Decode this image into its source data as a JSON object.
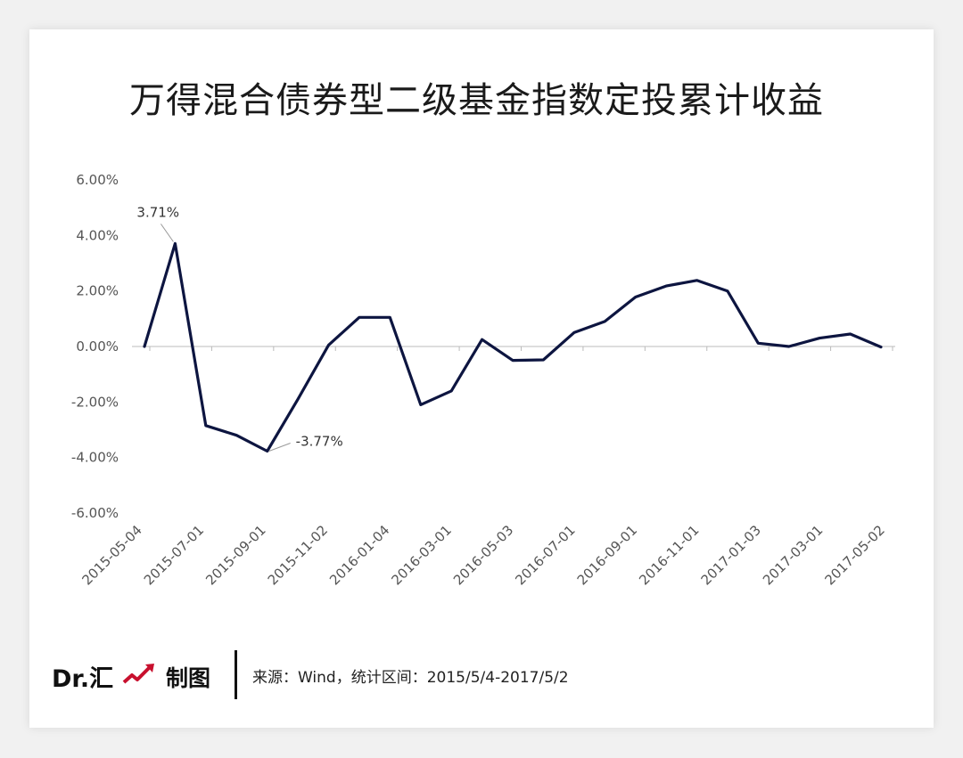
{
  "colors": {
    "line": "#0d1540",
    "accent": "#c8102e",
    "axis": "#bbbbbb"
  },
  "chart_data": {
    "type": "line",
    "title": "万得混合债券型二级基金指数定投累计收益",
    "xlabel": "",
    "ylabel": "",
    "ylim": [
      -6,
      6
    ],
    "y_ticks": [
      6,
      4,
      2,
      0,
      -2,
      -4,
      -6
    ],
    "y_tick_labels": [
      "6.00%",
      "4.00%",
      "2.00%",
      "0.00%",
      "-2.00%",
      "-4.00%",
      "-6.00%"
    ],
    "x_tick_labels": [
      "2015-05-04",
      "2015-07-01",
      "2015-09-01",
      "2015-11-02",
      "2016-01-04",
      "2016-03-01",
      "2016-05-03",
      "2016-07-01",
      "2016-09-01",
      "2016-11-01",
      "2017-01-03",
      "2017-03-01",
      "2017-05-02"
    ],
    "series": [
      {
        "name": "累计收益",
        "values": [
          0.0,
          3.71,
          -2.85,
          -3.2,
          -3.77,
          -1.9,
          0.05,
          1.05,
          1.05,
          -2.1,
          -1.6,
          0.25,
          -0.5,
          -0.48,
          0.5,
          0.9,
          1.78,
          2.18,
          2.38,
          2.0,
          0.12,
          0.0,
          0.3,
          0.45,
          -0.02
        ]
      }
    ],
    "annotations": [
      {
        "index": 1,
        "label": "3.71%"
      },
      {
        "index": 4,
        "label": "-3.77%"
      }
    ]
  },
  "footer": {
    "brand": "Dr.汇",
    "made": "制图",
    "source": "来源：Wind，统计区间：2015/5/4-2017/5/2"
  }
}
